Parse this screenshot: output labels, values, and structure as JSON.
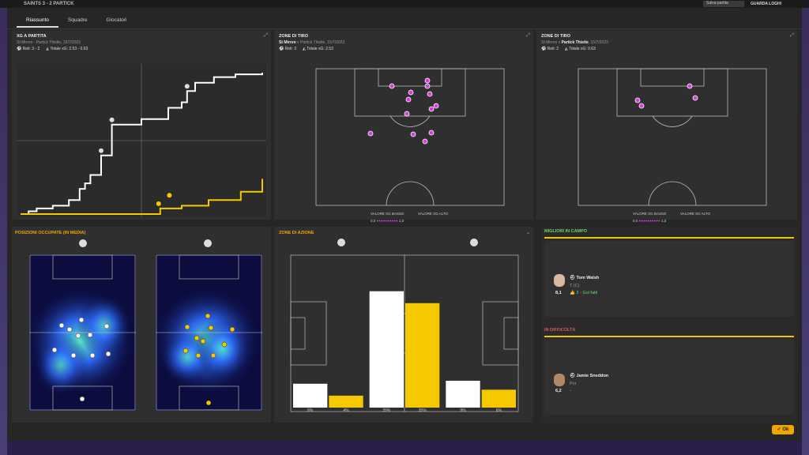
{
  "topbar": {
    "title": "SAINTS 3 - 2 PARTICK",
    "save_label": "Salva partita",
    "right_label": "GUARDA LOGHI"
  },
  "tabs": [
    {
      "label": "Riassunto"
    },
    {
      "label": "Squadre"
    },
    {
      "label": "Giocatori"
    }
  ],
  "xg_panel": {
    "title": "XG A PARTITA",
    "subtitle": "St Mirren - Partick Thistle, 15/7/2023",
    "goals_label": "Reti: 3 - 2",
    "xg_label": "Totale xG: 2.53 - 0.63"
  },
  "chart_data": {
    "type": "line",
    "title": "XG A PARTITA",
    "xlabel": "",
    "ylabel": "",
    "series": [
      {
        "values": [
          [
            0,
            0
          ],
          [
            3,
            0.05
          ],
          [
            6,
            0.1
          ],
          [
            12,
            0.15
          ],
          [
            18,
            0.25
          ],
          [
            22,
            0.45
          ],
          [
            24,
            0.55
          ],
          [
            26,
            0.7
          ],
          [
            30,
            1.05
          ],
          [
            34,
            1.6
          ],
          [
            45,
            1.7
          ],
          [
            55,
            1.9
          ],
          [
            60,
            2.0
          ],
          [
            62,
            2.2
          ],
          [
            65,
            2.35
          ],
          [
            72,
            2.45
          ],
          [
            80,
            2.5
          ],
          [
            90,
            2.53
          ]
        ]
      },
      {
        "values": [
          [
            0,
            0
          ],
          [
            50,
            0
          ],
          [
            52,
            0.1
          ],
          [
            60,
            0.15
          ],
          [
            70,
            0.25
          ],
          [
            82,
            0.4
          ],
          [
            90,
            0.63
          ]
        ]
      }
    ]
  },
  "shots_home": {
    "title": "ZONE DI TIRO",
    "team": "St Mirren",
    "rest": " v Partick Thistle, 15/7/2023",
    "goals_label": "Reti: 3",
    "xg_label": "Totale xG: 2.53",
    "legend_low": "VALORE XG BASSO",
    "legend_high": "VALORE XG ALTO",
    "scale_min": "0,0",
    "scale_max": "1,0"
  },
  "shots_away": {
    "title": "ZONE DI TIRO",
    "prefix": "St Mirren v ",
    "team": "Partick Thistle",
    "date": ", 15/7/2023",
    "goals_label": "Reti: 2",
    "xg_label": "Totale xG: 0.63",
    "legend_low": "VALORE XG BASSO",
    "legend_high": "VALORE XG ALTO",
    "scale_min": "0,0",
    "scale_max": "1,0"
  },
  "positions": {
    "title": "POSIZIONI OCCUPATE (IN MEDIA)"
  },
  "actions": {
    "title": "ZONE DI AZIONE",
    "zones": [
      {
        "home": 8,
        "away": 4,
        "home_label": "8%",
        "away_label": "4%"
      },
      {
        "home": 39,
        "away": 35,
        "home_label": "39%",
        "away_label": "35%"
      },
      {
        "home": 9,
        "away": 6,
        "home_label": "9%",
        "away_label": "6%"
      }
    ]
  },
  "best": {
    "title": "MIGLIORI IN CAMPO",
    "name": "Tom Walsh",
    "role": "T (C)",
    "rating": "8,1",
    "note": "2 - Gol fatti"
  },
  "worst": {
    "title": "IN DIFFICOLTÀ",
    "name": "Jamie Sneddon",
    "role": "Por",
    "rating": "6,2",
    "note": "-"
  },
  "ok_label": "Ok",
  "colors": {
    "home": "#ffffff",
    "away": "#f5c800",
    "accent": "#f0a500",
    "best": "#6ed36e",
    "worst": "#e05555"
  }
}
